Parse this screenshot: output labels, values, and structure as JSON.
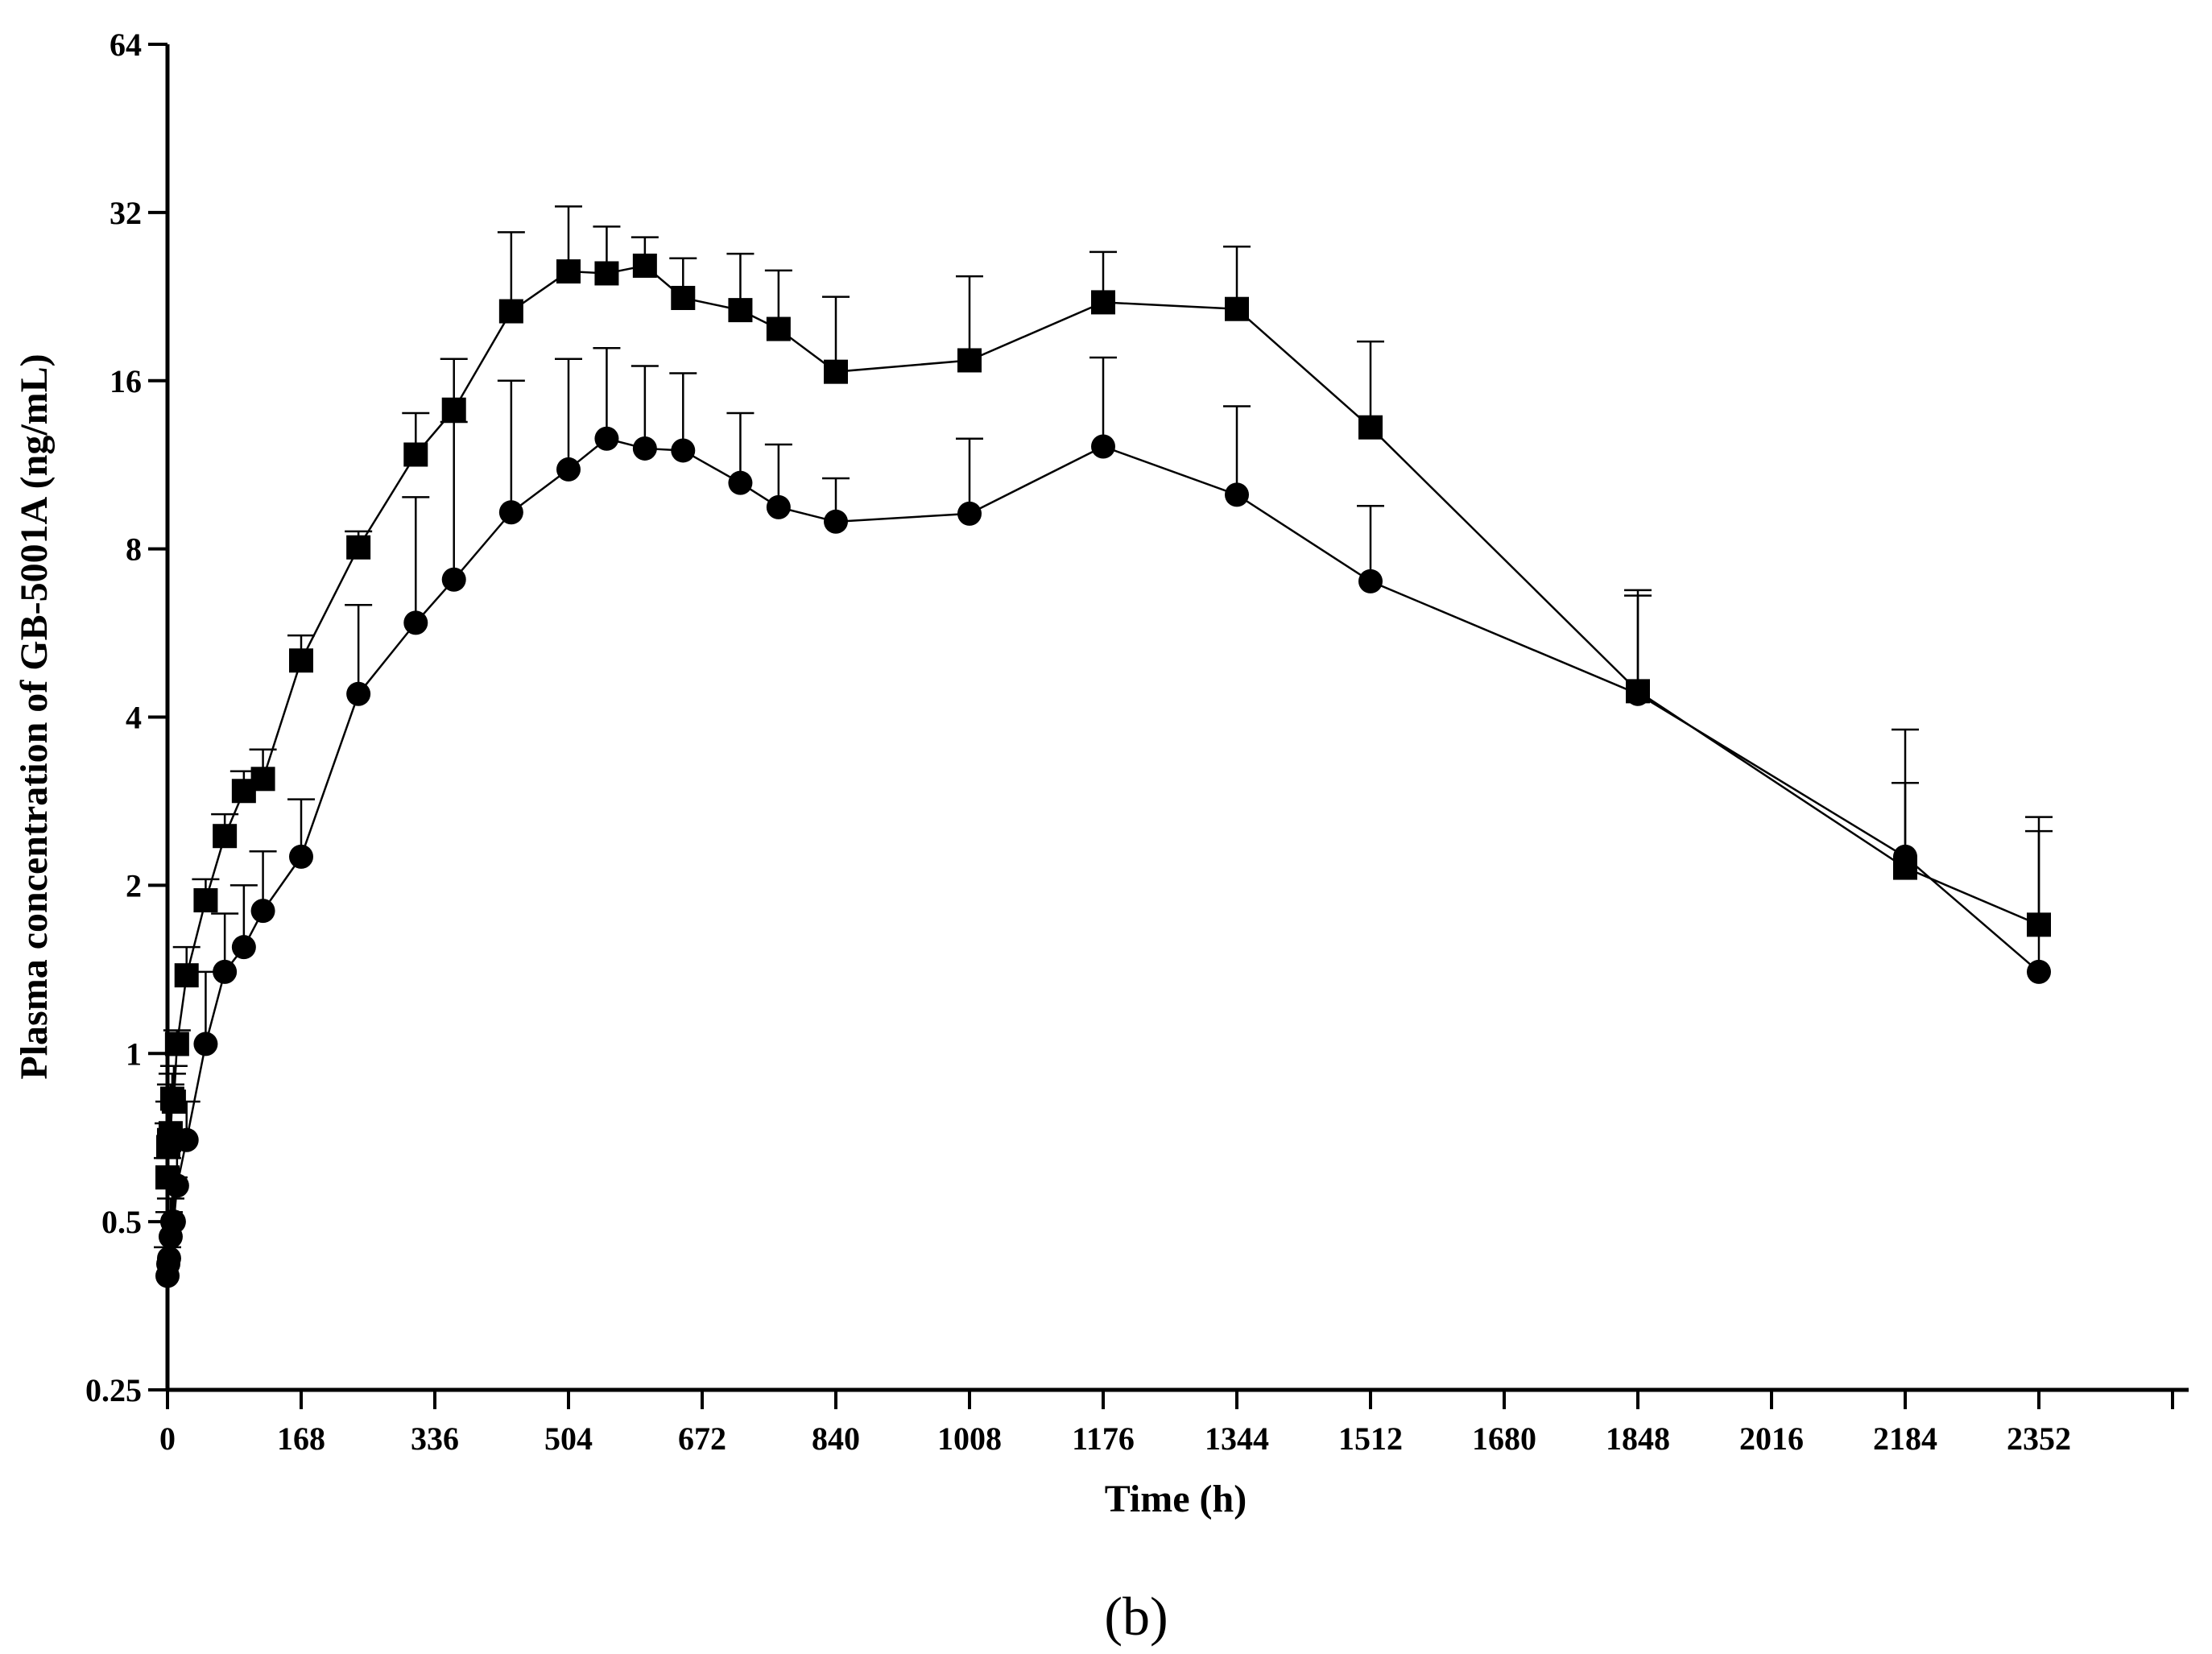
{
  "chart_data": {
    "type": "line",
    "title": "",
    "panel_label": "(b)",
    "xlabel": "Time (h)",
    "ylabel": "Plasma concentration of GB-5001A (ng/mL)",
    "xlim": [
      0,
      2500
    ],
    "ylim": [
      0.25,
      64
    ],
    "y_scale": "log2",
    "x_ticks": [
      0,
      168,
      336,
      504,
      672,
      840,
      1008,
      1176,
      1344,
      1512,
      1680,
      1848,
      2016,
      2184,
      2352
    ],
    "x_tick_labels": [
      "0",
      "168",
      "336",
      "504",
      "672",
      "840",
      "1008",
      "1176",
      "1344",
      "1512",
      "1680",
      "1848",
      "2016",
      "2184",
      "2352"
    ],
    "y_ticks": [
      0.25,
      0.5,
      1,
      2,
      4,
      8,
      16,
      32,
      64
    ],
    "y_tick_labels": [
      "0.25",
      "0.5",
      "1",
      "2",
      "4",
      "8",
      "16",
      "32",
      "64"
    ],
    "legend": "none",
    "grid": false,
    "series": [
      {
        "name": "square",
        "marker": "square",
        "color": "#000000",
        "x": [
          0,
          1,
          2,
          4,
          6,
          8,
          12,
          24,
          48,
          72,
          96,
          120,
          168,
          240,
          312,
          360,
          432,
          504,
          552,
          600,
          648,
          720,
          768,
          840,
          1008,
          1176,
          1344,
          1512,
          1848,
          2184,
          2352
        ],
        "y": [
          0.6,
          0.68,
          0.7,
          0.72,
          0.83,
          0.82,
          1.04,
          1.38,
          1.88,
          2.45,
          2.95,
          3.1,
          5.05,
          8.05,
          11.8,
          14.2,
          21.3,
          25.1,
          24.9,
          25.7,
          22.5,
          21.4,
          19.8,
          16.6,
          17.4,
          22.1,
          21.5,
          13.2,
          4.45,
          2.15,
          1.7
        ],
        "error_upper": [
          0.65,
          0.75,
          0.82,
          0.88,
          0.92,
          0.95,
          1.1,
          1.55,
          2.05,
          2.68,
          3.2,
          3.5,
          5.6,
          8.6,
          14.0,
          17.5,
          29.5,
          32.8,
          30.2,
          28.9,
          26.5,
          27.0,
          25.2,
          22.6,
          24.6,
          27.2,
          27.8,
          18.8,
          6.75,
          3.8,
          2.65
        ]
      },
      {
        "name": "circle",
        "marker": "circle",
        "color": "#000000",
        "x": [
          0,
          1,
          2,
          4,
          6,
          8,
          12,
          24,
          48,
          72,
          96,
          120,
          168,
          240,
          312,
          360,
          432,
          504,
          552,
          600,
          648,
          720,
          768,
          840,
          1008,
          1176,
          1344,
          1512,
          1848,
          2184,
          2352
        ],
        "y": [
          0.4,
          0.42,
          0.43,
          0.47,
          0.5,
          0.5,
          0.58,
          0.7,
          1.04,
          1.4,
          1.55,
          1.8,
          2.25,
          4.4,
          5.9,
          7.05,
          9.3,
          11.1,
          12.6,
          12.1,
          12.0,
          10.5,
          9.5,
          8.95,
          9.25,
          12.2,
          10.0,
          7.0,
          4.4,
          2.25,
          1.4
        ],
        "error_upper": [
          0.45,
          0.5,
          0.52,
          0.55,
          0.58,
          0.6,
          0.7,
          0.82,
          1.4,
          1.78,
          2.0,
          2.3,
          2.85,
          6.35,
          9.9,
          13.5,
          16.0,
          17.5,
          18.3,
          17.0,
          16.5,
          14.0,
          12.3,
          10.7,
          12.6,
          17.6,
          14.4,
          9.55,
          6.6,
          3.05,
          2.5
        ]
      }
    ]
  }
}
